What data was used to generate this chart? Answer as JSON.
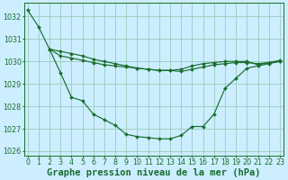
{
  "title": "Graphe pression niveau de la mer (hPa)",
  "background_color": "#cceeff",
  "grid_color": "#99ccbb",
  "line_color": "#1a6e2e",
  "x": [
    0,
    1,
    2,
    3,
    4,
    5,
    6,
    7,
    8,
    9,
    10,
    11,
    12,
    13,
    14,
    15,
    16,
    17,
    18,
    19,
    20,
    21,
    22,
    23
  ],
  "y_line1": [
    1032.3,
    1031.55,
    1030.55,
    1030.45,
    1030.35,
    1030.25,
    1030.1,
    1030.0,
    1029.9,
    1029.8,
    1029.7,
    1029.65,
    1029.6,
    1029.6,
    1029.65,
    1029.8,
    1029.9,
    1029.95,
    1030.0,
    1030.0,
    1030.0,
    1029.85,
    1029.95,
    1030.05
  ],
  "x_line2_start": 2,
  "y_line2": [
    1030.55,
    1030.25,
    1030.15,
    1030.05,
    1029.95,
    1029.85,
    1029.8,
    1029.75,
    1029.7,
    1029.65,
    1029.6,
    1029.6,
    1029.55,
    1029.65,
    1029.75,
    1029.85,
    1029.9,
    1029.95,
    1029.95,
    1029.9,
    1029.95,
    1030.0
  ],
  "x_line3_start": 2,
  "y_line3": [
    1030.55,
    1029.5,
    1028.4,
    1028.25,
    1027.65,
    1027.4,
    1027.15,
    1026.75,
    1026.65,
    1026.6,
    1026.55,
    1026.55,
    1026.7,
    1027.1,
    1027.1,
    1027.65,
    1028.8,
    1029.25,
    1029.7,
    1029.8,
    1029.9,
    1030.0
  ],
  "ylim": [
    1025.8,
    1032.6
  ],
  "yticks": [
    1026,
    1027,
    1028,
    1029,
    1030,
    1031,
    1032
  ],
  "xlim": [
    -0.3,
    23.3
  ],
  "title_fontsize": 7.5,
  "tick_fontsize": 5.8
}
